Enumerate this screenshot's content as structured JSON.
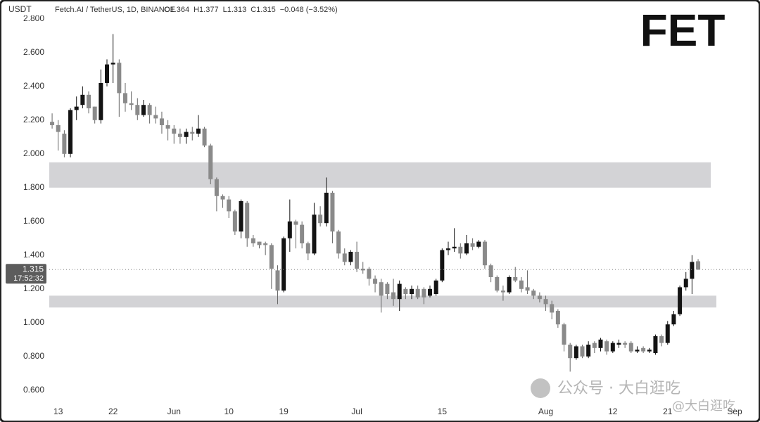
{
  "chart_data": {
    "type": "candlestick",
    "currency": "USDT",
    "legend_title": "Fetch.AI / TetherUS, 1D, BINANCE",
    "legend_ohlc": [
      "O1.364",
      "H1.377",
      "L1.313",
      "C1.315",
      "−0.048 (−3.52%)"
    ],
    "logo": "FET",
    "countdown": "17:52:32",
    "watermark": [
      "公众号 · 大白逛吃",
      "@大白逛吃"
    ],
    "up_color": "#131313",
    "down_color": "#8a8a8a",
    "zone_color": "#d3d3d6",
    "zones": [
      {
        "from": 1.8,
        "to": 1.95
      },
      {
        "from": 1.09,
        "to": 1.16
      }
    ],
    "xlim": [
      -0.7,
      115
    ],
    "xticks": [
      {
        "value": 1,
        "label": "13"
      },
      {
        "value": 10,
        "label": "22"
      },
      {
        "value": 20,
        "label": "Jun"
      },
      {
        "value": 29,
        "label": "10"
      },
      {
        "value": 38,
        "label": "19"
      },
      {
        "value": 50,
        "label": "Jul"
      },
      {
        "value": 64,
        "label": "15"
      },
      {
        "value": 81,
        "label": "Aug"
      },
      {
        "value": 92,
        "label": "12"
      },
      {
        "value": 101,
        "label": "21"
      },
      {
        "value": 112,
        "label": "Sep"
      }
    ],
    "ylim": [
      0.52,
      2.84
    ],
    "yticks": [
      {
        "value": 0.6,
        "label": "0.600"
      },
      {
        "value": 0.8,
        "label": "0.800"
      },
      {
        "value": 1,
        "label": "1.000"
      },
      {
        "value": 1.2,
        "label": "1.200"
      },
      {
        "value": 1.4,
        "label": "1.400"
      },
      {
        "value": 1.6,
        "label": "1.600"
      },
      {
        "value": 1.8,
        "label": "1.800"
      },
      {
        "value": 2,
        "label": "2.000"
      },
      {
        "value": 2.2,
        "label": "2.200"
      },
      {
        "value": 2.4,
        "label": "2.400"
      },
      {
        "value": 2.6,
        "label": "2.600"
      },
      {
        "value": 2.8,
        "label": "2.800"
      }
    ],
    "x": [
      0,
      1,
      2,
      3,
      4,
      5,
      6,
      7,
      8,
      9,
      10,
      11,
      12,
      13,
      14,
      15,
      16,
      17,
      18,
      19,
      20,
      21,
      22,
      23,
      24,
      25,
      26,
      27,
      28,
      29,
      30,
      31,
      32,
      33,
      34,
      35,
      36,
      37,
      38,
      39,
      40,
      41,
      42,
      43,
      44,
      45,
      46,
      47,
      48,
      49,
      50,
      51,
      52,
      53,
      54,
      55,
      56,
      57,
      58,
      59,
      60,
      61,
      62,
      63,
      64,
      65,
      66,
      67,
      68,
      69,
      70,
      71,
      72,
      73,
      74,
      75,
      76,
      77,
      78,
      79,
      80,
      81,
      82,
      83,
      84,
      85,
      86,
      87,
      88,
      89,
      90,
      91,
      92,
      93,
      94,
      95,
      96,
      97,
      98,
      99,
      100,
      101,
      102,
      103,
      104,
      105,
      106
    ],
    "open": [
      2.19,
      2.17,
      2.12,
      2.0,
      2.26,
      2.29,
      2.35,
      2.28,
      2.2,
      2.42,
      2.53,
      2.54,
      2.36,
      2.3,
      2.29,
      2.23,
      2.29,
      2.23,
      2.21,
      2.17,
      2.15,
      2.12,
      2.1,
      2.13,
      2.12,
      2.15,
      2.05,
      1.85,
      1.75,
      1.73,
      1.66,
      1.54,
      1.71,
      1.5,
      1.48,
      1.47,
      1.46,
      1.31,
      1.19,
      1.5,
      1.6,
      1.58,
      1.47,
      1.41,
      1.64,
      1.59,
      1.77,
      1.54,
      1.41,
      1.36,
      1.42,
      1.32,
      1.32,
      1.26,
      1.24,
      1.23,
      1.18,
      1.14,
      1.2,
      1.17,
      1.2,
      1.2,
      1.16,
      1.17,
      1.25,
      1.43,
      1.44,
      1.45,
      1.41,
      1.47,
      1.45,
      1.48,
      1.34,
      1.27,
      1.19,
      1.18,
      1.27,
      1.25,
      1.21,
      1.19,
      1.16,
      1.14,
      1.11,
      1.07,
      0.99,
      0.87,
      0.79,
      0.86,
      0.8,
      0.88,
      0.85,
      0.89,
      0.83,
      0.87,
      0.88,
      0.88,
      0.83,
      0.85,
      0.83,
      0.82,
      0.92,
      0.88,
      0.99,
      1.05,
      1.21,
      1.26,
      1.364
    ],
    "high": [
      2.24,
      2.2,
      2.14,
      2.27,
      2.34,
      2.4,
      2.37,
      2.28,
      2.5,
      2.56,
      2.71,
      2.56,
      2.42,
      2.37,
      2.33,
      2.32,
      2.3,
      2.28,
      2.25,
      2.2,
      2.17,
      2.15,
      2.15,
      2.16,
      2.23,
      2.16,
      2.06,
      1.86,
      1.76,
      1.75,
      1.67,
      1.73,
      1.72,
      1.52,
      1.48,
      1.48,
      1.47,
      1.34,
      1.51,
      1.73,
      1.61,
      1.6,
      1.48,
      1.71,
      1.69,
      1.86,
      1.78,
      1.55,
      1.44,
      1.43,
      1.48,
      1.36,
      1.33,
      1.28,
      1.26,
      1.24,
      1.26,
      1.25,
      1.21,
      1.22,
      1.22,
      1.21,
      1.22,
      1.26,
      1.44,
      1.48,
      1.56,
      1.47,
      1.52,
      1.5,
      1.49,
      1.49,
      1.35,
      1.28,
      1.22,
      1.28,
      1.33,
      1.27,
      1.31,
      1.2,
      1.18,
      1.16,
      1.13,
      1.08,
      1.0,
      0.88,
      0.87,
      0.87,
      0.89,
      0.89,
      0.91,
      0.9,
      0.89,
      0.9,
      0.89,
      0.89,
      0.86,
      0.86,
      0.85,
      0.93,
      0.93,
      1.01,
      1.07,
      1.22,
      1.3,
      1.4,
      1.377
    ],
    "low": [
      2.15,
      2.02,
      1.98,
      1.98,
      2.2,
      2.27,
      2.24,
      2.18,
      2.18,
      2.4,
      2.42,
      2.22,
      2.25,
      2.26,
      2.2,
      2.22,
      2.18,
      2.18,
      2.12,
      2.08,
      2.06,
      2.06,
      2.06,
      2.08,
      2.1,
      2.04,
      1.82,
      1.66,
      1.68,
      1.62,
      1.52,
      1.5,
      1.45,
      1.45,
      1.44,
      1.4,
      1.2,
      1.11,
      1.18,
      1.42,
      1.44,
      1.44,
      1.37,
      1.4,
      1.57,
      1.57,
      1.47,
      1.38,
      1.34,
      1.34,
      1.3,
      1.29,
      1.22,
      1.18,
      1.06,
      1.14,
      1.1,
      1.07,
      1.14,
      1.14,
      1.14,
      1.11,
      1.15,
      1.16,
      1.24,
      1.4,
      1.42,
      1.38,
      1.4,
      1.43,
      1.44,
      1.32,
      1.24,
      1.18,
      1.13,
      1.17,
      1.24,
      1.18,
      1.17,
      1.14,
      1.12,
      1.07,
      1.02,
      0.97,
      0.83,
      0.71,
      0.78,
      0.79,
      0.79,
      0.82,
      0.83,
      0.81,
      0.82,
      0.85,
      0.85,
      0.82,
      0.82,
      0.82,
      0.82,
      0.81,
      0.86,
      0.87,
      0.98,
      1.04,
      1.19,
      1.17,
      1.313
    ],
    "close": [
      2.17,
      2.13,
      2.0,
      2.26,
      2.28,
      2.35,
      2.27,
      2.2,
      2.42,
      2.53,
      2.54,
      2.36,
      2.3,
      2.29,
      2.23,
      2.29,
      2.23,
      2.21,
      2.17,
      2.15,
      2.12,
      2.1,
      2.13,
      2.12,
      2.15,
      2.05,
      1.85,
      1.75,
      1.73,
      1.66,
      1.54,
      1.72,
      1.5,
      1.47,
      1.46,
      1.46,
      1.32,
      1.19,
      1.5,
      1.6,
      1.58,
      1.47,
      1.41,
      1.64,
      1.59,
      1.77,
      1.54,
      1.41,
      1.36,
      1.42,
      1.32,
      1.31,
      1.26,
      1.23,
      1.16,
      1.17,
      1.14,
      1.23,
      1.17,
      1.2,
      1.15,
      1.15,
      1.2,
      1.25,
      1.43,
      1.44,
      1.45,
      1.41,
      1.47,
      1.45,
      1.48,
      1.34,
      1.27,
      1.19,
      1.18,
      1.27,
      1.25,
      1.2,
      1.19,
      1.16,
      1.14,
      1.11,
      1.06,
      0.99,
      0.87,
      0.79,
      0.86,
      0.8,
      0.87,
      0.85,
      0.9,
      0.83,
      0.88,
      0.88,
      0.87,
      0.83,
      0.84,
      0.83,
      0.84,
      0.92,
      0.88,
      0.99,
      1.05,
      1.21,
      1.26,
      1.36,
      1.315
    ]
  }
}
